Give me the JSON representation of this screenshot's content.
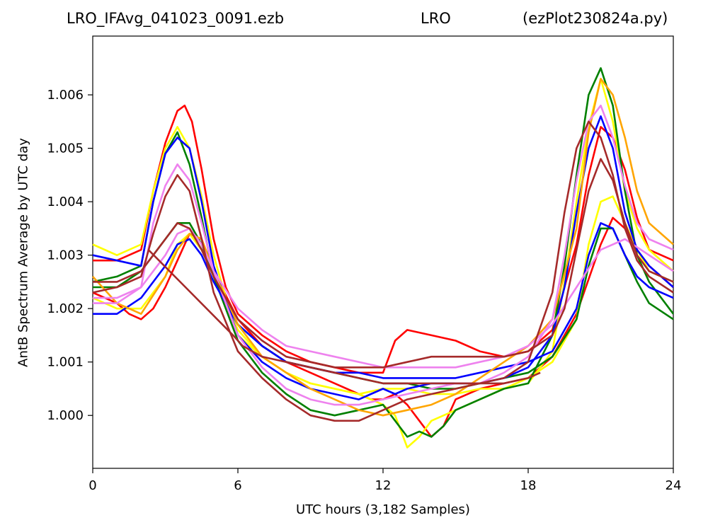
{
  "title": {
    "left": "LRO_IFAvg_041023_0091.ezb",
    "center": "LRO",
    "right": "(ezPlot230824a.py)"
  },
  "chart_data": {
    "type": "line",
    "xlabel": "UTC hours  (3,182 Samples)",
    "ylabel": "AntB Spectrum Average by UTC day",
    "xlim": [
      0,
      24
    ],
    "ylim": [
      0.99901,
      1.0071
    ],
    "xticks": [
      "0",
      "6",
      "12",
      "18",
      "24"
    ],
    "yticks": [
      "1.000",
      "1.001",
      "1.002",
      "1.003",
      "1.004",
      "1.005",
      "1.006"
    ],
    "grid": false,
    "series": [
      {
        "color": "#ff0000",
        "x": [
          0,
          1,
          2,
          2.5,
          3,
          3.5,
          3.8,
          4.1,
          4.5,
          5,
          5.5,
          6,
          7,
          8,
          9,
          10,
          11,
          12,
          12.5,
          13,
          14,
          15,
          16,
          17,
          18,
          19,
          20,
          20.5,
          21,
          21.5,
          22,
          22.5,
          23,
          24
        ],
        "y": [
          1.0029,
          1.0029,
          1.0031,
          1.0042,
          1.0051,
          1.0057,
          1.0058,
          1.0055,
          1.0046,
          1.0033,
          1.0024,
          1.0019,
          1.0015,
          1.0012,
          1.001,
          1.0009,
          1.0008,
          1.0008,
          1.0014,
          1.0016,
          1.0015,
          1.0014,
          1.0012,
          1.0011,
          1.0012,
          1.0016,
          1.0032,
          1.0045,
          1.0054,
          1.0052,
          1.0046,
          1.0037,
          1.0031,
          1.0029
        ]
      },
      {
        "color": "#ff0000",
        "x": [
          0,
          1,
          1.5,
          2,
          2.5,
          3,
          3.5,
          4,
          4.5,
          5,
          6,
          7,
          8,
          9,
          10,
          11,
          11.5,
          12,
          12.5,
          13,
          13.5,
          14,
          14.5,
          15,
          16,
          17,
          18,
          19,
          20,
          21,
          21.5,
          22,
          22.5,
          23,
          23.5,
          24
        ],
        "y": [
          1.0023,
          1.0021,
          1.0019,
          1.0018,
          1.002,
          1.0024,
          1.0029,
          1.0034,
          1.0033,
          1.0027,
          1.0018,
          1.0013,
          1.001,
          1.0008,
          1.0006,
          1.0004,
          1.0003,
          1.0003,
          1.0004,
          1.0002,
          0.9999,
          0.9996,
          0.9998,
          1.0003,
          1.0005,
          1.0006,
          1.0007,
          1.0011,
          1.0019,
          1.0032,
          1.0037,
          1.0035,
          1.0031,
          1.0028,
          1.0026,
          1.0024
        ]
      },
      {
        "color": "#ffff00",
        "x": [
          0,
          1,
          2,
          2.5,
          3,
          3.5,
          4,
          4.5,
          5,
          5.5,
          6,
          7,
          8,
          9,
          10,
          11,
          12,
          12.5,
          13,
          13.5,
          14,
          15,
          16,
          17,
          18,
          19,
          19.5,
          20,
          20.5,
          21,
          21.5,
          22,
          22.5,
          23,
          24
        ],
        "y": [
          1.0032,
          1.003,
          1.0032,
          1.0042,
          1.005,
          1.0054,
          1.005,
          1.0041,
          1.003,
          1.0022,
          1.0015,
          1.0011,
          1.0008,
          1.0006,
          1.0005,
          1.0004,
          1.0002,
          1.0,
          0.9994,
          0.9996,
          0.9999,
          1.0001,
          1.0003,
          1.0005,
          1.0006,
          1.0012,
          1.0025,
          1.004,
          1.0054,
          1.0063,
          1.0055,
          1.0042,
          1.0035,
          1.0031,
          1.0027
        ]
      },
      {
        "color": "#ffff00",
        "x": [
          0,
          1,
          2,
          3,
          3.5,
          4,
          4.5,
          5,
          6,
          7,
          8,
          9,
          10,
          11,
          12,
          13,
          14,
          15,
          16,
          17,
          18,
          19,
          20,
          20.5,
          21,
          21.5,
          22,
          22.5,
          23,
          24
        ],
        "y": [
          1.0022,
          1.002,
          1.002,
          1.0026,
          1.0032,
          1.0034,
          1.0031,
          1.0026,
          1.0016,
          1.0011,
          1.0008,
          1.0006,
          1.0005,
          1.0004,
          1.0005,
          1.0005,
          1.0004,
          1.0004,
          1.0005,
          1.0005,
          1.0007,
          1.001,
          1.0018,
          1.0032,
          1.004,
          1.0041,
          1.0036,
          1.0031,
          1.0027,
          1.0025
        ]
      },
      {
        "color": "#008000",
        "x": [
          0,
          1,
          2,
          2.5,
          3,
          3.5,
          4,
          4.5,
          5,
          6,
          7,
          8,
          9,
          10,
          11,
          12,
          12.5,
          13,
          13.5,
          14,
          14.5,
          15,
          16,
          17,
          18,
          19,
          19.5,
          20,
          20.5,
          21,
          21.5,
          22,
          22.5,
          23,
          24
        ],
        "y": [
          1.0025,
          1.0026,
          1.0028,
          1.004,
          1.0049,
          1.0053,
          1.0047,
          1.0037,
          1.0026,
          1.0014,
          1.0008,
          1.0004,
          1.0001,
          1.0,
          1.0001,
          1.0002,
          0.9999,
          0.9996,
          0.9997,
          0.9996,
          0.9998,
          1.0001,
          1.0003,
          1.0005,
          1.0006,
          1.0015,
          1.0028,
          1.0045,
          1.006,
          1.0065,
          1.0058,
          1.0042,
          1.003,
          1.0025,
          1.0019
        ]
      },
      {
        "color": "#008000",
        "x": [
          0,
          1,
          2,
          3,
          3.5,
          4,
          4.5,
          5,
          6,
          7,
          8,
          9,
          10,
          11,
          12,
          13,
          14,
          15,
          16,
          17,
          18,
          19,
          20,
          20.5,
          21,
          21.5,
          22,
          22.5,
          23,
          24
        ],
        "y": [
          1.0024,
          1.0024,
          1.0027,
          1.0033,
          1.0036,
          1.0036,
          1.0032,
          1.0026,
          1.0017,
          1.0013,
          1.001,
          1.0009,
          1.0008,
          1.0007,
          1.0006,
          1.0006,
          1.0005,
          1.0005,
          1.0006,
          1.0007,
          1.0008,
          1.0011,
          1.0018,
          1.0028,
          1.0035,
          1.0035,
          1.003,
          1.0025,
          1.0021,
          1.0018
        ]
      },
      {
        "color": "#0000ff",
        "x": [
          0,
          1,
          2,
          2.5,
          3,
          3.5,
          4,
          4.5,
          5,
          6,
          7,
          8,
          9,
          10,
          11,
          11.5,
          12,
          12.5,
          13,
          14,
          15,
          16,
          17,
          18,
          19,
          19.5,
          20,
          20.5,
          21,
          21.5,
          22,
          22.5,
          23,
          24
        ],
        "y": [
          1.003,
          1.0029,
          1.0028,
          1.004,
          1.0049,
          1.0052,
          1.005,
          1.004,
          1.0028,
          1.0015,
          1.001,
          1.0007,
          1.0005,
          1.0004,
          1.0003,
          1.0004,
          1.0005,
          1.0004,
          1.0005,
          1.0006,
          1.0006,
          1.0006,
          1.0007,
          1.0009,
          1.0015,
          1.0024,
          1.0038,
          1.005,
          1.0056,
          1.005,
          1.0038,
          1.0031,
          1.0028,
          1.0024
        ]
      },
      {
        "color": "#0000ff",
        "x": [
          0,
          1,
          2,
          3,
          3.5,
          4,
          4.5,
          5,
          6,
          7,
          8,
          9,
          10,
          11,
          12,
          13,
          14,
          15,
          16,
          17,
          18,
          19,
          20,
          20.5,
          21,
          21.5,
          22,
          22.5,
          23,
          24
        ],
        "y": [
          1.0019,
          1.0019,
          1.0022,
          1.0028,
          1.0032,
          1.0033,
          1.003,
          1.0025,
          1.0017,
          1.0013,
          1.001,
          1.0009,
          1.0008,
          1.0008,
          1.0007,
          1.0007,
          1.0007,
          1.0007,
          1.0008,
          1.0009,
          1.001,
          1.0012,
          1.002,
          1.003,
          1.0036,
          1.0035,
          1.003,
          1.0026,
          1.0024,
          1.0022
        ]
      },
      {
        "color": "#ffa500",
        "x": [
          0,
          1,
          2,
          3,
          3.5,
          4,
          4.5,
          5,
          6,
          7,
          8,
          9,
          10,
          11,
          12,
          13,
          14,
          15,
          16,
          17,
          18,
          19,
          20,
          20.5,
          21,
          21.5,
          22,
          22.5,
          23,
          24
        ],
        "y": [
          1.0026,
          1.0021,
          1.0019,
          1.0026,
          1.0031,
          1.0034,
          1.0033,
          1.0027,
          1.0017,
          1.0011,
          1.0008,
          1.0005,
          1.0003,
          1.0001,
          1.0,
          1.0001,
          1.0002,
          1.0004,
          1.0007,
          1.001,
          1.0013,
          1.0018,
          1.0035,
          1.0053,
          1.0063,
          1.006,
          1.0052,
          1.0042,
          1.0036,
          1.0032
        ]
      },
      {
        "color": "#ee82ee",
        "x": [
          0,
          1,
          2,
          2.5,
          3,
          3.5,
          4,
          4.5,
          5,
          6,
          7,
          8,
          9,
          10,
          11,
          12,
          13,
          14,
          15,
          16,
          17,
          18,
          19,
          19.5,
          20,
          20.5,
          21,
          21.5,
          22,
          22.5,
          23,
          24
        ],
        "y": [
          1.0021,
          1.0021,
          1.0024,
          1.0036,
          1.0043,
          1.0047,
          1.0044,
          1.0036,
          1.0027,
          1.0015,
          1.0009,
          1.0005,
          1.0003,
          1.0002,
          1.0002,
          1.0003,
          1.0004,
          1.0005,
          1.0006,
          1.0006,
          1.0008,
          1.0011,
          1.0018,
          1.003,
          1.0044,
          1.0055,
          1.0058,
          1.0052,
          1.0043,
          1.0036,
          1.0033,
          1.0031
        ]
      },
      {
        "color": "#ee82ee",
        "x": [
          0,
          1,
          2,
          3,
          3.5,
          4,
          4.5,
          5,
          6,
          7,
          8,
          9,
          10,
          11,
          12,
          13,
          14,
          15,
          16,
          17,
          18,
          19,
          20,
          21,
          22,
          23,
          24
        ],
        "y": [
          1.0022,
          1.0022,
          1.0024,
          1.003,
          1.0034,
          1.0035,
          1.0032,
          1.0027,
          1.002,
          1.0016,
          1.0013,
          1.0012,
          1.0011,
          1.001,
          1.0009,
          1.0009,
          1.0009,
          1.0009,
          1.001,
          1.0011,
          1.0013,
          1.0017,
          1.0024,
          1.0031,
          1.0033,
          1.003,
          1.0027
        ]
      },
      {
        "color": "#a52a2a",
        "x": [
          0,
          1,
          2,
          2.5,
          3,
          3.5,
          4,
          4.5,
          5,
          6,
          7,
          8,
          9,
          10,
          11,
          12,
          13,
          14,
          15,
          16,
          17,
          18,
          19,
          19.5,
          20,
          20.5,
          21,
          21.5,
          22,
          22.5,
          23,
          24
        ],
        "y": [
          1.0023,
          1.0024,
          1.0026,
          1.0034,
          1.0041,
          1.0045,
          1.0042,
          1.0033,
          1.0023,
          1.0012,
          1.0007,
          1.0003,
          1.0,
          0.9999,
          0.9999,
          1.0001,
          1.0003,
          1.0004,
          1.0005,
          1.0006,
          1.0007,
          1.001,
          1.0023,
          1.0038,
          1.005,
          1.0055,
          1.0052,
          1.0045,
          1.0035,
          1.0029,
          1.0026,
          1.0023
        ]
      },
      {
        "color": "#a52a2a",
        "x": [
          0,
          1,
          2,
          3,
          3.5,
          4,
          4.5,
          5,
          6,
          7,
          8,
          9,
          10,
          11,
          12,
          13,
          14,
          15,
          16,
          17,
          18,
          19,
          19.5,
          20,
          20.5,
          21,
          21.5,
          22,
          22.5,
          23,
          24
        ],
        "y": [
          1.0025,
          1.0025,
          1.0027,
          1.0033,
          1.0036,
          1.0035,
          1.0031,
          1.0026,
          1.0018,
          1.0014,
          1.0011,
          1.001,
          1.0009,
          1.0009,
          1.0009,
          1.001,
          1.0011,
          1.0011,
          1.0011,
          1.0011,
          1.0012,
          1.0015,
          1.002,
          1.0031,
          1.0042,
          1.0048,
          1.0044,
          1.0036,
          1.003,
          1.0027,
          1.0025
        ]
      },
      {
        "color": "#a52a2a",
        "x": [
          2.3,
          5.8,
          6.2,
          7,
          8,
          9,
          10,
          11,
          12,
          13,
          14,
          15,
          16,
          17,
          18,
          18.5
        ],
        "y": [
          1.0031,
          1.0015,
          1.0013,
          1.0011,
          1.001,
          1.0009,
          1.0008,
          1.0007,
          1.0006,
          1.0006,
          1.0006,
          1.0006,
          1.0006,
          1.0006,
          1.0007,
          1.0008
        ]
      }
    ]
  }
}
